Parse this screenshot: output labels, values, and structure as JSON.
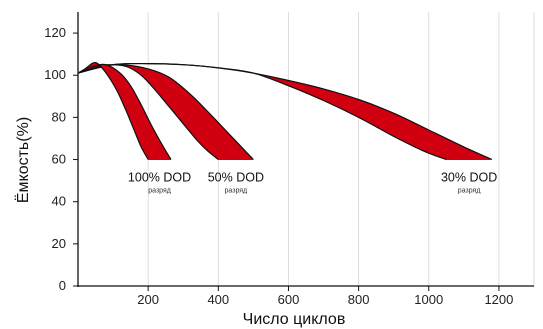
{
  "chart_data": {
    "type": "line",
    "title": "",
    "xlabel": "Число циклов",
    "ylabel": "Ёмкость(%)",
    "xlim": [
      0,
      1300
    ],
    "ylim": [
      0,
      130
    ],
    "x_ticks": [
      200,
      400,
      600,
      800,
      1000,
      1200
    ],
    "y_ticks": [
      0,
      20,
      40,
      60,
      80,
      100,
      120
    ],
    "grid": "vertical",
    "fill_color": "#d00010",
    "line_color": "#111111",
    "series": [
      {
        "label": "100% DOD",
        "sublabel": "разряд",
        "upper": {
          "x": [
            0,
            40,
            80,
            120,
            150,
            180,
            210,
            240,
            265
          ],
          "y": [
            101,
            104,
            105,
            101,
            95,
            86,
            76,
            67,
            60
          ]
        },
        "lower": {
          "x": [
            0,
            20,
            50,
            80,
            110,
            135,
            160,
            180,
            200
          ],
          "y": [
            101,
            103,
            106,
            101,
            93,
            84,
            74,
            66,
            60
          ]
        }
      },
      {
        "label": "50% DOD",
        "sublabel": "разряд",
        "upper": {
          "x": [
            0,
            60,
            120,
            200,
            260,
            320,
            380,
            420,
            460,
            500
          ],
          "y": [
            101,
            104,
            105,
            103,
            99,
            91,
            81,
            74,
            67,
            60
          ]
        },
        "lower": {
          "x": [
            0,
            40,
            90,
            140,
            180,
            220,
            260,
            300,
            340,
            370,
            400
          ],
          "y": [
            101,
            104,
            105,
            104,
            100,
            93,
            85,
            77,
            69,
            64,
            60
          ]
        }
      },
      {
        "label": "30% DOD",
        "sublabel": "разряд",
        "upper": {
          "x": [
            0,
            100,
            200,
            300,
            400,
            500,
            600,
            700,
            800,
            900,
            1000,
            1100,
            1180
          ],
          "y": [
            101,
            105,
            105.5,
            105,
            103.5,
            101,
            97.5,
            93.5,
            88.5,
            82,
            74,
            66,
            60
          ]
        },
        "lower": {
          "x": [
            0,
            100,
            200,
            300,
            400,
            500,
            600,
            700,
            800,
            900,
            960,
            1000,
            1050
          ],
          "y": [
            101,
            105,
            105.5,
            105,
            103.5,
            101,
            95,
            88,
            80,
            71,
            66,
            63,
            60
          ]
        }
      }
    ]
  }
}
